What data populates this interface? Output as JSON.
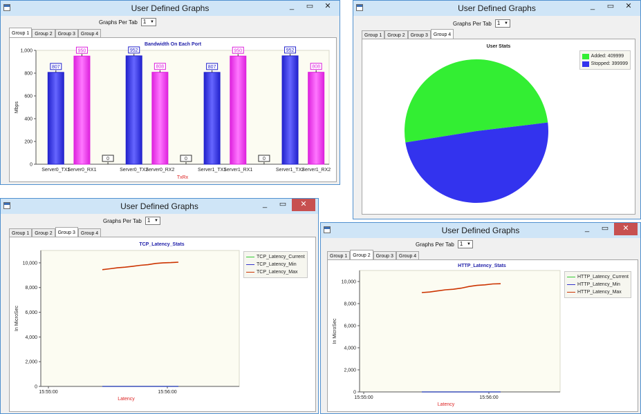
{
  "windows": {
    "w1": {
      "title": "User Defined Graphs",
      "gpt_label": "Graphs Per Tab",
      "gpt_value": "1",
      "tabs": [
        "Group 1",
        "Group 2",
        "Group 3",
        "Group 4"
      ],
      "active_tab": "Group 1"
    },
    "w2": {
      "title": "User Defined Graphs",
      "gpt_label": "Graphs Per Tab",
      "gpt_value": "1",
      "tabs": [
        "Group 1",
        "Group 2",
        "Group 3",
        "Group 4"
      ],
      "active_tab": "Group 4"
    },
    "w3": {
      "title": "User Defined Graphs",
      "gpt_label": "Graphs Per Tab",
      "gpt_value": "1",
      "tabs": [
        "Group 1",
        "Group 2",
        "Group 3",
        "Group 4"
      ],
      "active_tab": "Group 3"
    },
    "w4": {
      "title": "User Defined Graphs",
      "gpt_label": "Graphs Per Tab",
      "gpt_value": "1",
      "tabs": [
        "Group 1",
        "Group 2",
        "Group 3",
        "Group 4"
      ],
      "active_tab": "Group 2"
    }
  },
  "colors": {
    "titlebar": "#cfe5f7",
    "close": "#c75050",
    "blue_bar": "#3333dd",
    "pink_bar": "#ee33ee",
    "green_line": "#33cc33",
    "blue_line": "#3333cc",
    "red_line": "#cc3300"
  },
  "chart_data": [
    {
      "id": "bandwidth",
      "type": "bar",
      "title": "Bandwidth On Each Port",
      "xlabel": "TxRx",
      "ylabel": "Mbps",
      "ylim": [
        0,
        1000
      ],
      "yticks": [
        "0",
        "200",
        "400",
        "600",
        "800",
        "1,000"
      ],
      "categories": [
        "Server0_TX1",
        "Server0_RX1",
        "",
        "Server0_TX2",
        "Server0_RX2",
        "",
        "Server1_TX1",
        "Server1_RX1",
        "",
        "Server1_TX2",
        "Server1_RX2"
      ],
      "values": [
        807,
        950,
        0,
        952,
        808,
        0,
        807,
        950,
        0,
        952,
        808
      ],
      "labels": [
        "807",
        "950",
        "0",
        "952",
        "808",
        "0",
        "807",
        "950",
        "0",
        "952",
        "808"
      ],
      "bar_colors": [
        "blue",
        "pink",
        "none",
        "blue",
        "pink",
        "none",
        "blue",
        "pink",
        "none",
        "blue",
        "pink"
      ]
    },
    {
      "id": "user-stats",
      "type": "pie",
      "title": "User Stats",
      "slices": [
        {
          "name": "Added: 409999",
          "value": 409999,
          "color": "#33ee33"
        },
        {
          "name": "Stopped: 399999",
          "value": 399999,
          "color": "#3333ee"
        }
      ],
      "legend": "top-right"
    },
    {
      "id": "tcp-latency",
      "type": "line",
      "title": "TCP_Latency_Stats",
      "xlabel": "Latency",
      "ylabel": "In MicroSec",
      "ylim": [
        0,
        11000
      ],
      "yticks": [
        "0",
        "2,000",
        "4,000",
        "6,000",
        "8,000",
        "10,000"
      ],
      "xticks": [
        "15:55:00",
        "15:56:00"
      ],
      "series": [
        {
          "name": "TCP_Latency_Current",
          "color": "#33cc33",
          "values": [
            0,
            0,
            0,
            0,
            0,
            0,
            0,
            0,
            0,
            0,
            0
          ]
        },
        {
          "name": "TCP_Latency_Min",
          "color": "#3333cc",
          "values": [
            0,
            0,
            0,
            0,
            0,
            0,
            0,
            0,
            0,
            0,
            0
          ]
        },
        {
          "name": "TCP_Latency_Max",
          "color": "#cc3300",
          "values": [
            9450,
            9520,
            9600,
            9650,
            9720,
            9800,
            9850,
            9950,
            10000,
            10020,
            10050
          ]
        }
      ],
      "legend": "top-right"
    },
    {
      "id": "http-latency",
      "type": "line",
      "title": "HTTP_Latency_Stats",
      "xlabel": "Latency",
      "ylabel": "In MicroSec",
      "ylim": [
        0,
        11000
      ],
      "yticks": [
        "0",
        "2,000",
        "4,000",
        "6,000",
        "8,000",
        "10,000"
      ],
      "xticks": [
        "15:55:00",
        "15:56:00"
      ],
      "series": [
        {
          "name": "HTTP_Latency_Current",
          "color": "#33cc33",
          "values": [
            0,
            0,
            0,
            0,
            0,
            0,
            0,
            0,
            0,
            0,
            0
          ]
        },
        {
          "name": "HTTP_Latency_Min",
          "color": "#3333cc",
          "values": [
            0,
            0,
            0,
            0,
            0,
            0,
            0,
            0,
            0,
            0,
            0
          ]
        },
        {
          "name": "HTTP_Latency_Max",
          "color": "#cc3300",
          "values": [
            9000,
            9050,
            9150,
            9250,
            9300,
            9400,
            9550,
            9650,
            9700,
            9780,
            9800
          ]
        }
      ],
      "legend": "top-right"
    }
  ]
}
